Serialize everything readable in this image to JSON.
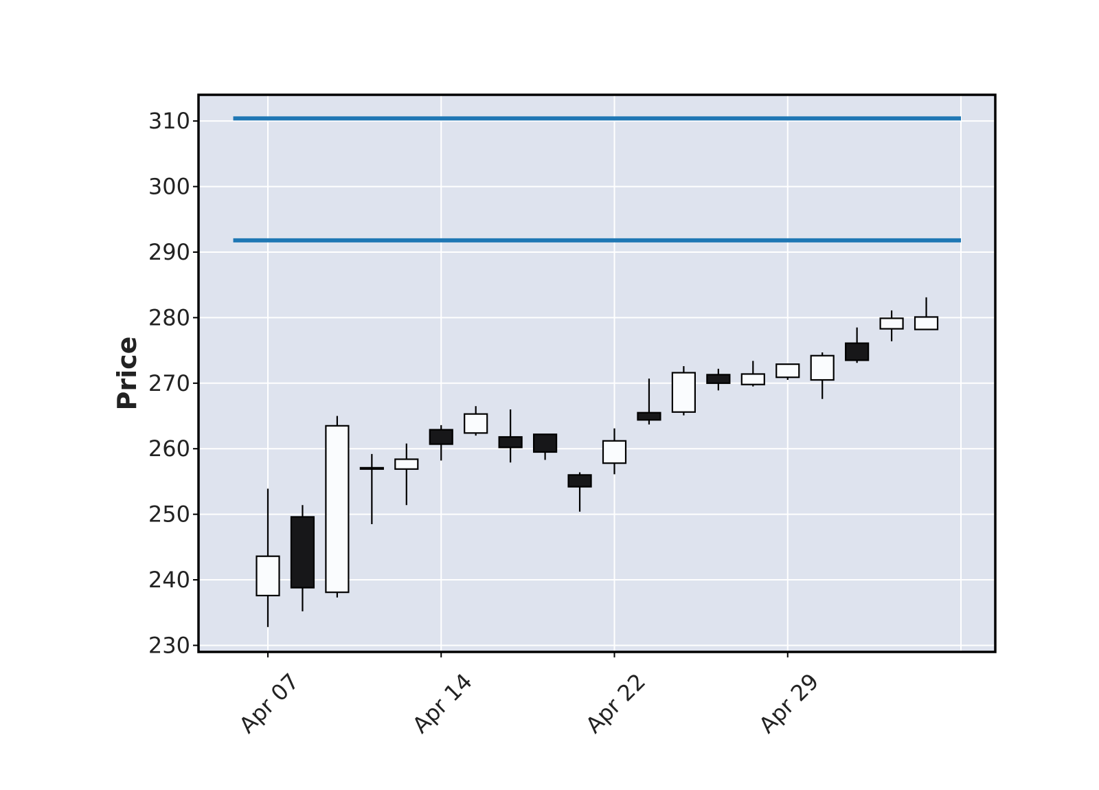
{
  "chart_data": {
    "type": "candlestick",
    "title": "",
    "xlabel": "",
    "ylabel": "Price",
    "ylim": [
      229,
      314
    ],
    "yticks": [
      230,
      240,
      250,
      260,
      270,
      280,
      290,
      300,
      310
    ],
    "xticks": [
      {
        "label": "Apr 07",
        "date": "2025-04-07"
      },
      {
        "label": "Apr 14",
        "date": "2025-04-14"
      },
      {
        "label": "Apr 22",
        "date": "2025-04-22"
      },
      {
        "label": "Apr 29",
        "date": "2025-04-29"
      }
    ],
    "grid": true,
    "candles": [
      {
        "date": "2025-04-07",
        "open": 237.6,
        "high": 253.9,
        "low": 232.8,
        "close": 243.6
      },
      {
        "date": "2025-04-08",
        "open": 249.6,
        "high": 251.4,
        "low": 235.2,
        "close": 238.8
      },
      {
        "date": "2025-04-09",
        "open": 238.1,
        "high": 265.0,
        "low": 237.3,
        "close": 263.5
      },
      {
        "date": "2025-04-10",
        "open": 257.1,
        "high": 259.2,
        "low": 248.5,
        "close": 256.9
      },
      {
        "date": "2025-04-11",
        "open": 256.9,
        "high": 260.8,
        "low": 251.4,
        "close": 258.4
      },
      {
        "date": "2025-04-14",
        "open": 262.9,
        "high": 263.6,
        "low": 258.2,
        "close": 260.7
      },
      {
        "date": "2025-04-15",
        "open": 262.4,
        "high": 266.5,
        "low": 262.0,
        "close": 265.3
      },
      {
        "date": "2025-04-16",
        "open": 261.8,
        "high": 266.0,
        "low": 257.9,
        "close": 260.2
      },
      {
        "date": "2025-04-17",
        "open": 262.2,
        "high": 262.2,
        "low": 258.3,
        "close": 259.5
      },
      {
        "date": "2025-04-21",
        "open": 256.0,
        "high": 256.4,
        "low": 250.4,
        "close": 254.2
      },
      {
        "date": "2025-04-22",
        "open": 257.8,
        "high": 263.1,
        "low": 256.1,
        "close": 261.2
      },
      {
        "date": "2025-04-23",
        "open": 265.5,
        "high": 270.7,
        "low": 263.7,
        "close": 264.4
      },
      {
        "date": "2025-04-24",
        "open": 265.6,
        "high": 272.6,
        "low": 265.1,
        "close": 271.6
      },
      {
        "date": "2025-04-25",
        "open": 271.3,
        "high": 272.2,
        "low": 268.9,
        "close": 270.0
      },
      {
        "date": "2025-04-28",
        "open": 269.8,
        "high": 273.4,
        "low": 269.5,
        "close": 271.4
      },
      {
        "date": "2025-04-29",
        "open": 270.9,
        "high": 273.0,
        "low": 270.5,
        "close": 272.9
      },
      {
        "date": "2025-04-30",
        "open": 270.5,
        "high": 274.7,
        "low": 267.6,
        "close": 274.2
      },
      {
        "date": "2025-05-01",
        "open": 276.1,
        "high": 278.5,
        "low": 273.1,
        "close": 273.5
      },
      {
        "date": "2025-05-02",
        "open": 278.3,
        "high": 281.1,
        "low": 276.4,
        "close": 279.9
      },
      {
        "date": "2025-05-05",
        "open": 278.2,
        "high": 283.1,
        "low": 278.2,
        "close": 280.1
      }
    ],
    "hlines": [
      {
        "value": 310.4,
        "color": "#1f77b4"
      },
      {
        "value": 291.8,
        "color": "#1f77b4"
      }
    ],
    "colors": {
      "plot_background": "#dee3ee",
      "grid": "#ffffff",
      "up_fill": "#fafcfe",
      "down_fill": "#171719",
      "edge": "#000000",
      "frame": "#000000",
      "hline": "#1f77b4"
    }
  }
}
